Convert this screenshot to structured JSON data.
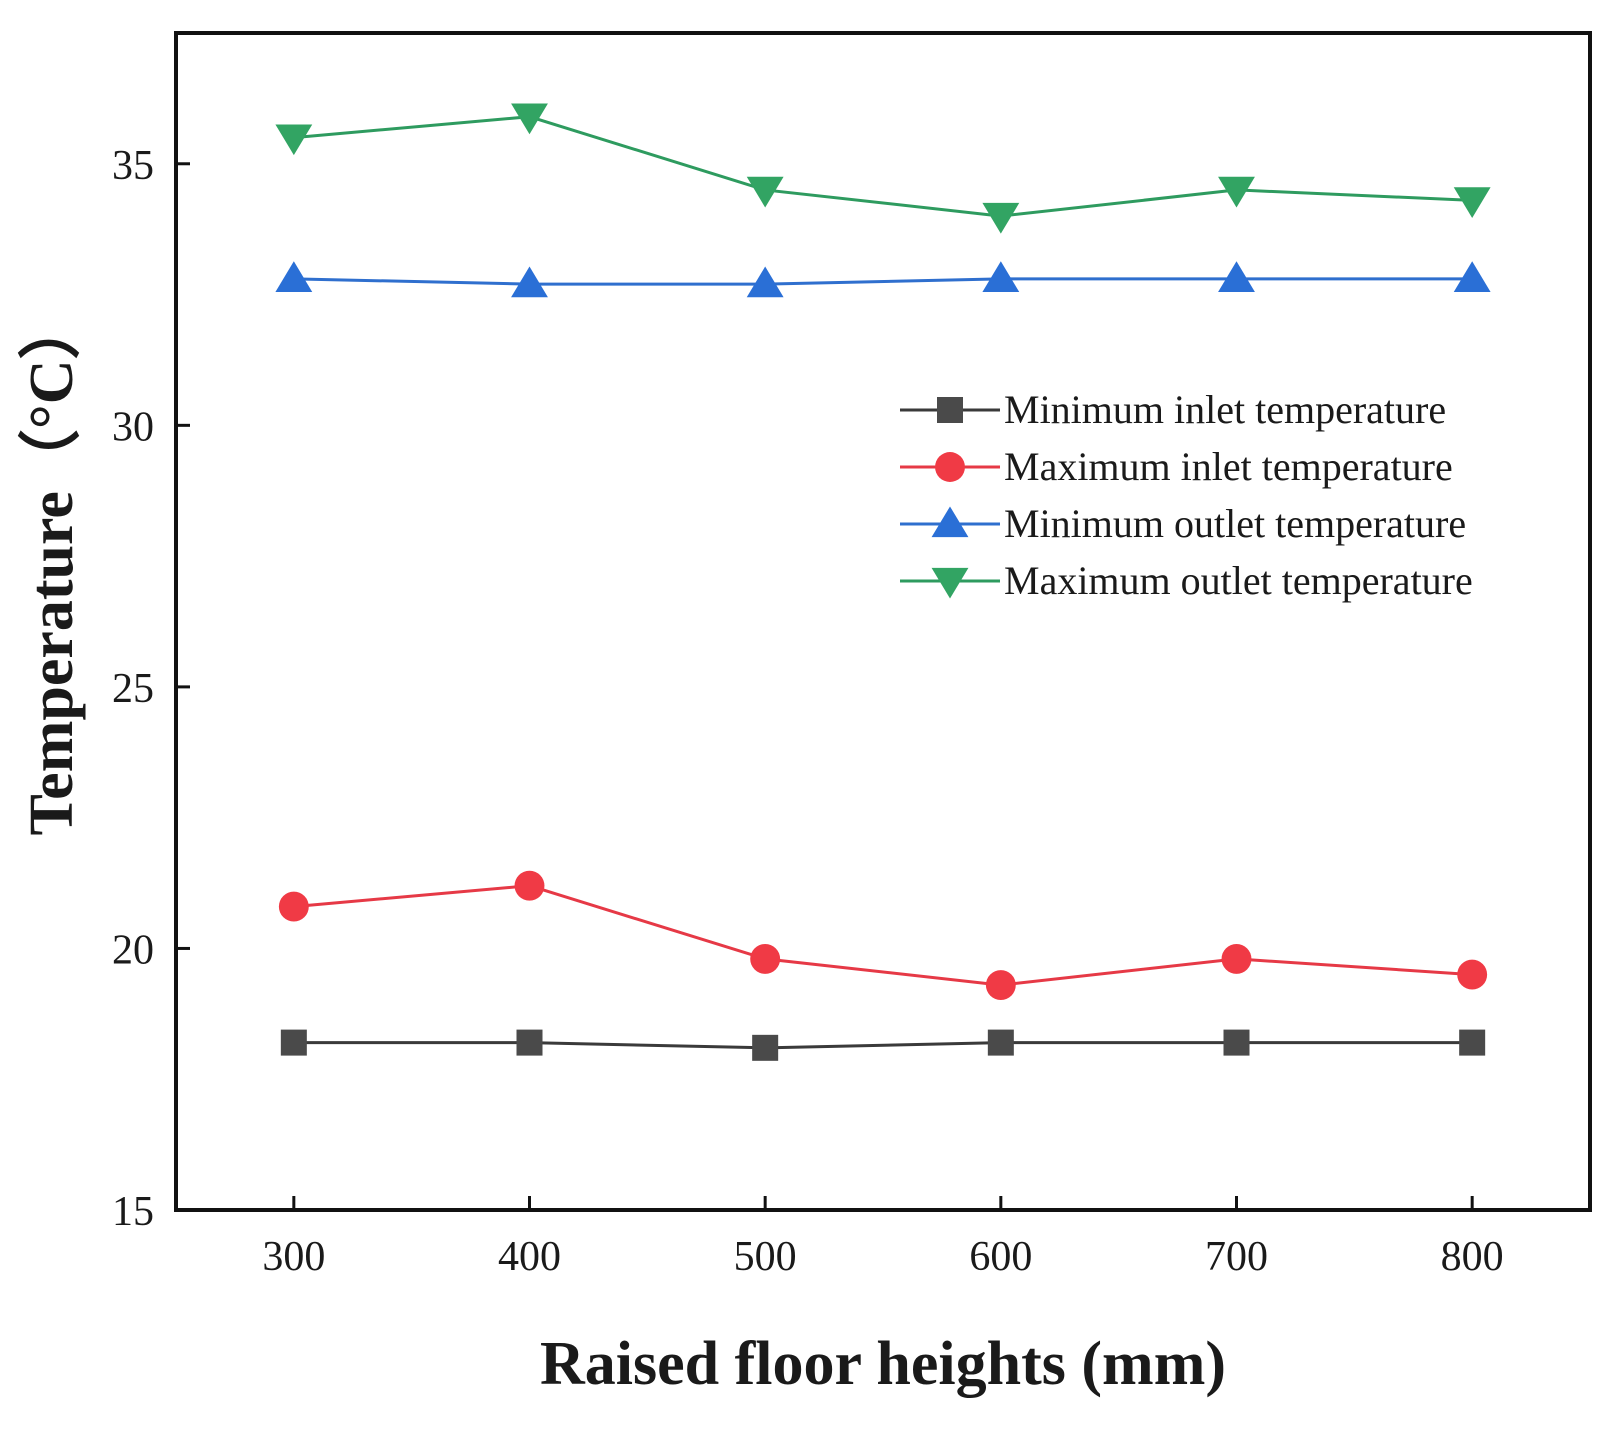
{
  "chart_data": {
    "type": "line",
    "title": "",
    "xlabel": "Raised floor heights (mm)",
    "ylabel": "Temperature（°C）",
    "x": [
      300,
      400,
      500,
      600,
      700,
      800
    ],
    "xlim": [
      250,
      850
    ],
    "ylim": [
      15,
      37.5
    ],
    "xticks": [
      "300",
      "400",
      "500",
      "600",
      "700",
      "800"
    ],
    "yticks": [
      "15",
      "20",
      "25",
      "30",
      "35"
    ],
    "ytick_values": [
      15,
      20,
      25,
      30,
      35
    ],
    "grid": false,
    "legend_position": "center-right",
    "series": [
      {
        "name": "Minimum inlet temperature",
        "marker": "square",
        "color": "#3a3a3a",
        "markerColor": "#4a4a4a",
        "values": [
          18.2,
          18.2,
          18.1,
          18.2,
          18.2,
          18.2
        ]
      },
      {
        "name": "Maximum inlet temperature",
        "marker": "circle",
        "color": "#e63946",
        "markerColor": "#f03a45",
        "values": [
          20.8,
          21.2,
          19.8,
          19.3,
          19.8,
          19.5
        ]
      },
      {
        "name": "Minimum outlet temperature",
        "marker": "triangle-up",
        "color": "#2f6fce",
        "markerColor": "#2a6fd6",
        "values": [
          32.8,
          32.7,
          32.7,
          32.8,
          32.8,
          32.8
        ]
      },
      {
        "name": "Maximum outlet temperature",
        "marker": "triangle-down",
        "color": "#2e9b5f",
        "markerColor": "#32a463",
        "values": [
          35.5,
          35.9,
          34.5,
          34.0,
          34.5,
          34.3
        ]
      }
    ]
  }
}
